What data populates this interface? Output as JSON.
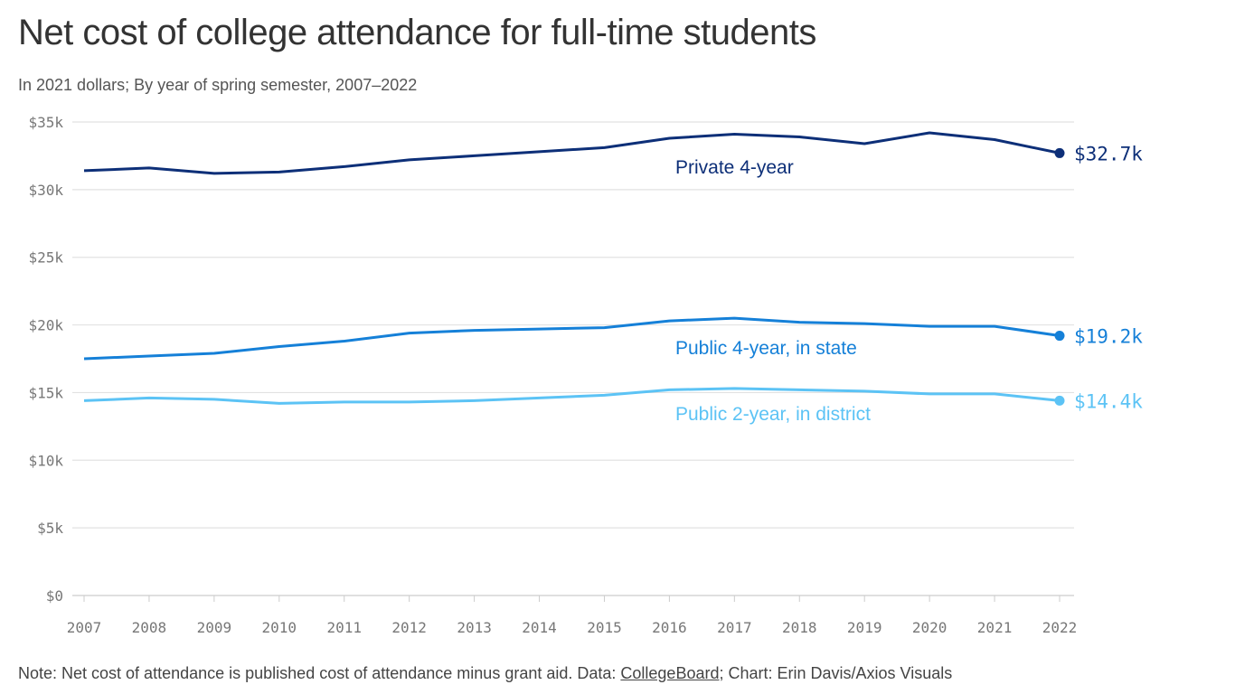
{
  "chart_data": {
    "type": "line",
    "title": "Net cost of college attendance for full-time students",
    "subtitle": "In 2021 dollars; By year of spring semester, 2007–2022",
    "xlabel": "",
    "ylabel": "",
    "ylim": [
      0,
      35
    ],
    "grid": true,
    "y_ticks": [
      {
        "value": 0,
        "label": "$0"
      },
      {
        "value": 5,
        "label": "$5k"
      },
      {
        "value": 10,
        "label": "$10k"
      },
      {
        "value": 15,
        "label": "$15k"
      },
      {
        "value": 20,
        "label": "$20k"
      },
      {
        "value": 25,
        "label": "$25k"
      },
      {
        "value": 30,
        "label": "$30k"
      },
      {
        "value": 35,
        "label": "$35k"
      }
    ],
    "x": [
      "2007",
      "2008",
      "2009",
      "2010",
      "2011",
      "2012",
      "2013",
      "2014",
      "2015",
      "2016",
      "2017",
      "2018",
      "2019",
      "2020",
      "2021",
      "2022"
    ],
    "series": [
      {
        "name": "Private 4-year",
        "color": "#0d2f78",
        "end_label": "$32.7k",
        "values": [
          31.4,
          31.6,
          31.2,
          31.3,
          31.7,
          32.2,
          32.5,
          32.8,
          33.1,
          33.8,
          34.1,
          33.9,
          33.4,
          34.2,
          33.7,
          32.7
        ]
      },
      {
        "name": "Public 4-year, in state",
        "color": "#1580d8",
        "end_label": "$19.2k",
        "values": [
          17.5,
          17.7,
          17.9,
          18.4,
          18.8,
          19.4,
          19.6,
          19.7,
          19.8,
          20.3,
          20.5,
          20.2,
          20.1,
          19.9,
          19.9,
          19.2
        ]
      },
      {
        "name": "Public 2-year, in district",
        "color": "#5cc3f5",
        "end_label": "$14.4k",
        "values": [
          14.4,
          14.6,
          14.5,
          14.2,
          14.3,
          14.3,
          14.4,
          14.6,
          14.8,
          15.2,
          15.3,
          15.2,
          15.1,
          14.9,
          14.9,
          14.4
        ]
      }
    ]
  },
  "footer": {
    "note": "Note: Net cost of attendance is published cost of attendance minus grant aid. Data: ",
    "source_link": "CollegeBoard",
    "credit": "; Chart: Erin Davis/Axios Visuals"
  }
}
